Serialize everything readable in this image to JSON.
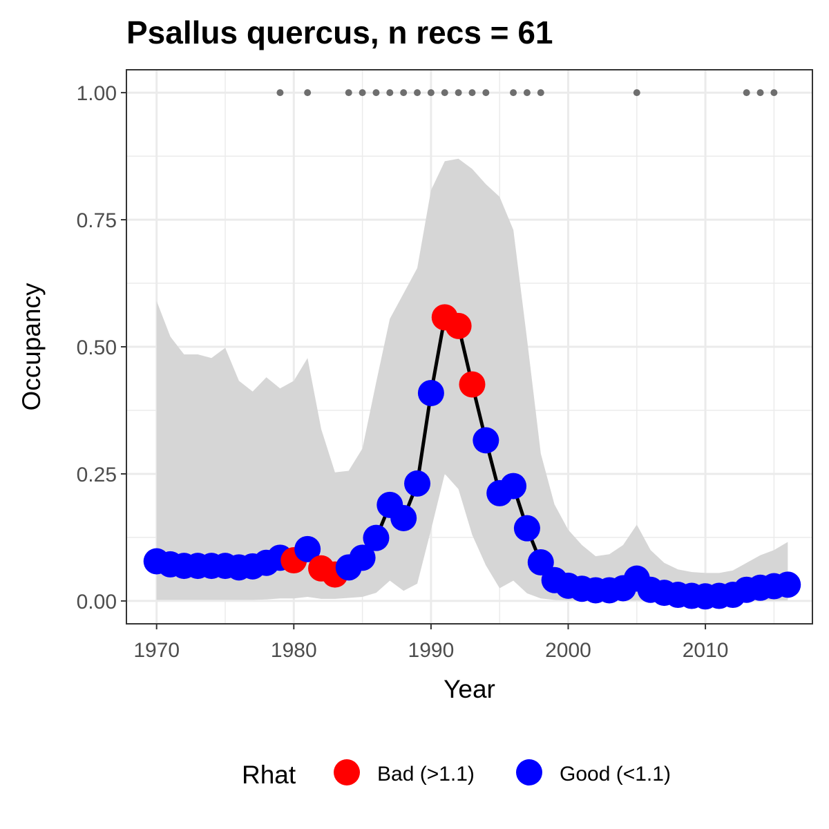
{
  "chart_data": {
    "type": "line",
    "title": "Psallus quercus, n recs = 61",
    "xlabel": "Year",
    "ylabel": "Occupancy",
    "xlim": [
      1967.8,
      2017.8
    ],
    "ylim": [
      -0.045,
      1.045
    ],
    "x_ticks": [
      1970,
      1980,
      1990,
      2000,
      2010
    ],
    "y_ticks": [
      0.0,
      0.25,
      0.5,
      0.75,
      1.0
    ],
    "x_tick_labels": [
      "1970",
      "1980",
      "1990",
      "2000",
      "2010"
    ],
    "y_tick_labels": [
      "0.00",
      "0.25",
      "0.50",
      "0.75",
      "1.00"
    ],
    "grid": true,
    "legend": {
      "title": "Rhat",
      "position": "bottom",
      "entries": [
        {
          "label": "Bad (>1.1)",
          "color": "#ff0000"
        },
        {
          "label": "Good (<1.1)",
          "color": "#0000ff"
        }
      ]
    },
    "colors": {
      "bad": "#ff0000",
      "good": "#0000ff",
      "line": "#000000",
      "ribbon": "#d6d6d6",
      "record": "#6e6e6e"
    },
    "x": [
      1970,
      1971,
      1972,
      1973,
      1974,
      1975,
      1976,
      1977,
      1978,
      1979,
      1980,
      1981,
      1982,
      1983,
      1984,
      1985,
      1986,
      1987,
      1988,
      1989,
      1990,
      1991,
      1992,
      1993,
      1994,
      1995,
      1996,
      1997,
      1998,
      1999,
      2000,
      2001,
      2002,
      2003,
      2004,
      2005,
      2006,
      2007,
      2008,
      2009,
      2010,
      2011,
      2012,
      2013,
      2014,
      2015,
      2016
    ],
    "series": [
      {
        "values": [
          0.078,
          0.072,
          0.069,
          0.069,
          0.069,
          0.069,
          0.066,
          0.068,
          0.075,
          0.085,
          0.08,
          0.102,
          0.064,
          0.052,
          0.066,
          0.085,
          0.124,
          0.189,
          0.163,
          0.231,
          0.409,
          0.558,
          0.541,
          0.426,
          0.316,
          0.212,
          0.226,
          0.143,
          0.076,
          0.041,
          0.03,
          0.024,
          0.021,
          0.021,
          0.025,
          0.044,
          0.022,
          0.016,
          0.012,
          0.01,
          0.009,
          0.01,
          0.012,
          0.022,
          0.026,
          0.029,
          0.032
        ],
        "rhat": [
          "good",
          "good",
          "good",
          "good",
          "good",
          "good",
          "good",
          "good",
          "good",
          "good",
          "bad",
          "good",
          "bad",
          "bad",
          "good",
          "good",
          "good",
          "good",
          "good",
          "good",
          "good",
          "bad",
          "bad",
          "bad",
          "good",
          "good",
          "good",
          "good",
          "good",
          "good",
          "good",
          "good",
          "good",
          "good",
          "good",
          "good",
          "good",
          "good",
          "good",
          "good",
          "good",
          "good",
          "good",
          "good",
          "good",
          "good",
          "good"
        ],
        "lower": [
          0.002,
          0.002,
          0.002,
          0.002,
          0.002,
          0.002,
          0.002,
          0.002,
          0.003,
          0.005,
          0.005,
          0.008,
          0.004,
          0.004,
          0.006,
          0.008,
          0.016,
          0.04,
          0.02,
          0.034,
          0.14,
          0.25,
          0.22,
          0.13,
          0.07,
          0.025,
          0.04,
          0.015,
          0.005,
          0.002,
          0.001,
          0.001,
          0.001,
          0.001,
          0.001,
          0.001,
          0.001,
          0.001,
          0.001,
          0.001,
          0.001,
          0.001,
          0.001,
          0.001,
          0.001,
          0.001,
          0.001
        ],
        "upper": [
          0.59,
          0.52,
          0.485,
          0.485,
          0.478,
          0.498,
          0.433,
          0.412,
          0.44,
          0.418,
          0.433,
          0.478,
          0.338,
          0.253,
          0.256,
          0.3,
          0.43,
          0.555,
          0.605,
          0.655,
          0.808,
          0.865,
          0.87,
          0.85,
          0.82,
          0.795,
          0.73,
          0.515,
          0.29,
          0.19,
          0.14,
          0.11,
          0.088,
          0.092,
          0.11,
          0.15,
          0.1,
          0.075,
          0.062,
          0.057,
          0.055,
          0.055,
          0.06,
          0.075,
          0.09,
          0.1,
          0.116
        ]
      }
    ],
    "records": {
      "y": 1.0,
      "years": [
        1979,
        1981,
        1984,
        1985,
        1986,
        1987,
        1988,
        1989,
        1990,
        1991,
        1992,
        1993,
        1994,
        1996,
        1997,
        1998,
        2005,
        2013,
        2014,
        2015
      ]
    }
  }
}
